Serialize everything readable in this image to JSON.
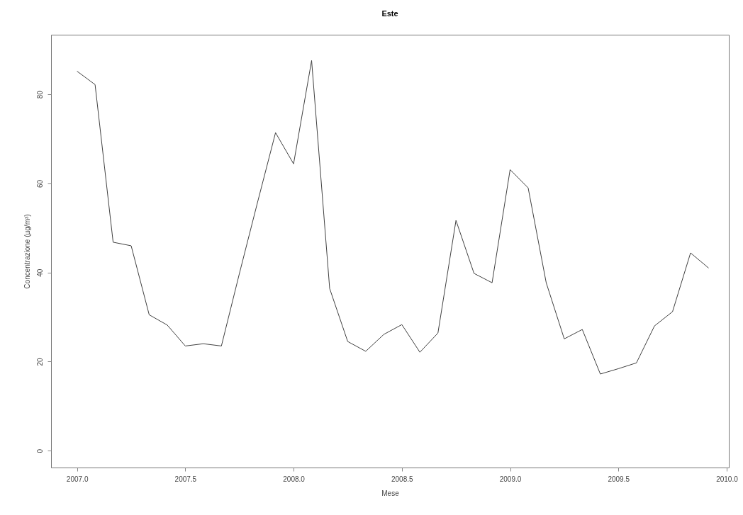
{
  "chart_data": {
    "type": "line",
    "title": "Este",
    "xlabel": "Mese",
    "ylabel": "Concentrazione (µg/m³)",
    "x": [
      2007.0,
      2007.0833,
      2007.1667,
      2007.25,
      2007.3333,
      2007.4167,
      2007.5,
      2007.5833,
      2007.6667,
      2007.75,
      2007.8333,
      2007.9167,
      2008.0,
      2008.0833,
      2008.1667,
      2008.25,
      2008.3333,
      2008.4167,
      2008.5,
      2008.5833,
      2008.6667,
      2008.75,
      2008.8333,
      2008.9167,
      2009.0,
      2009.0833,
      2009.1667,
      2009.25,
      2009.3333,
      2009.4167,
      2009.5,
      2009.5833,
      2009.6667,
      2009.75,
      2009.8333,
      2009.9167
    ],
    "series": [
      {
        "color": "#404040",
        "values": [
          85.2,
          82.2,
          46.8,
          46.0,
          30.5,
          28.2,
          23.5,
          24.0,
          23.5,
          39.8,
          55.7,
          71.4,
          64.4,
          87.6,
          36.4,
          24.5,
          22.3,
          26.1,
          28.3,
          22.1,
          26.4,
          51.7,
          39.8,
          37.7,
          63.1,
          59.0,
          37.7,
          25.1,
          27.2,
          17.2,
          18.4,
          19.7,
          28.0,
          31.2,
          44.4,
          41.0
        ]
      }
    ],
    "xlim": [
      2006.88,
      2010.01
    ],
    "ylim": [
      -3.8,
      93.4
    ],
    "xticks": [
      {
        "value": 2007,
        "label": "2007.0"
      },
      2007.5,
      {
        "value": 2008,
        "label": "2008.0"
      },
      2008.5,
      {
        "value": 2009,
        "label": "2009.0"
      },
      2009.5,
      {
        "value": 2010,
        "label": "2010.0"
      }
    ],
    "yticks": [
      0,
      20,
      40,
      60,
      80
    ],
    "grid": false,
    "marker": "none",
    "line_style": "solid"
  }
}
